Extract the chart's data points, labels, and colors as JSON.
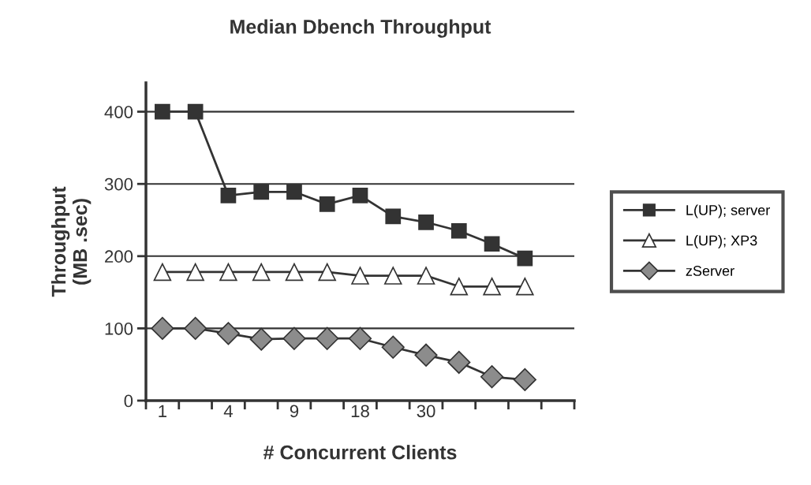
{
  "chart_data": {
    "type": "line",
    "title": "Median Dbench Throughput",
    "xlabel": "# Concurrent Clients",
    "ylabel": "Throughput\n(MB .sec)",
    "categories": [
      "1",
      null,
      "4",
      null,
      "9",
      null,
      "18",
      null,
      "30",
      null,
      null,
      null
    ],
    "ylim": [
      0,
      440
    ],
    "yticks": [
      0,
      100,
      200,
      300,
      400
    ],
    "grid": "y",
    "legend": "right",
    "line_style": "solid",
    "series": [
      {
        "name": "L(UP); server",
        "color": "#333333",
        "marker": "square",
        "values": [
          400,
          400,
          284,
          289,
          289,
          272,
          284,
          255,
          247,
          235,
          217,
          197
        ]
      },
      {
        "name": "L(UP); XP3",
        "color": "#ffffff",
        "marker": "triangle",
        "values": [
          178,
          178,
          178,
          178,
          178,
          178,
          173,
          173,
          173,
          158,
          158,
          158
        ]
      },
      {
        "name": "zServer",
        "color": "#8c8c8c",
        "marker": "diamond",
        "values": [
          100,
          100,
          93,
          85,
          86,
          86,
          86,
          74,
          63,
          53,
          33,
          29
        ]
      }
    ]
  }
}
